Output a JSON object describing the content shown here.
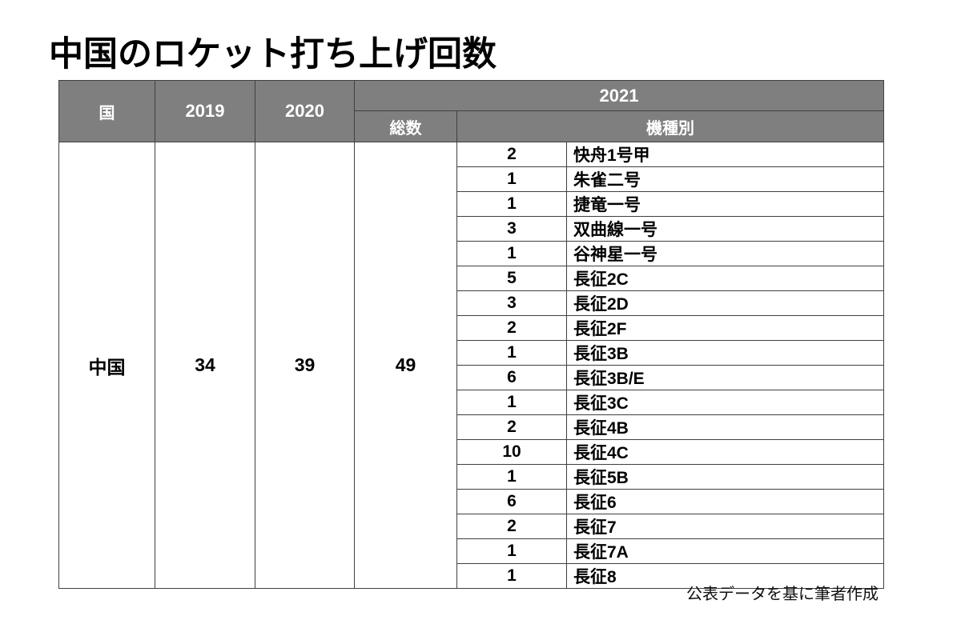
{
  "title": "中国のロケット打ち上げ回数",
  "footer_note": "公表データを基に筆者作成",
  "colors": {
    "header_bg": "#7f7f7f",
    "header_text": "#ffffff",
    "border": "#404040",
    "body_text": "#000000",
    "page_bg": "#ffffff"
  },
  "table_headers": {
    "country": "国",
    "y2019": "2019",
    "y2020": "2020",
    "y2021": "2021",
    "total": "総数",
    "by_model": "機種別"
  },
  "chart_data": {
    "type": "table",
    "title": "中国のロケット打ち上げ回数",
    "columns": [
      "国",
      "2019",
      "2020",
      "2021 総数",
      "2021 機種別"
    ],
    "country": "中国",
    "launches_2019": 34,
    "launches_2020": 39,
    "total_2021": 49,
    "models_2021": [
      {
        "count": 2,
        "name": "快舟1号甲"
      },
      {
        "count": 1,
        "name": "朱雀二号"
      },
      {
        "count": 1,
        "name": "捷竜一号"
      },
      {
        "count": 3,
        "name": "双曲線一号"
      },
      {
        "count": 1,
        "name": "谷神星一号"
      },
      {
        "count": 5,
        "name": "長征2C"
      },
      {
        "count": 3,
        "name": "長征2D"
      },
      {
        "count": 2,
        "name": "長征2F"
      },
      {
        "count": 1,
        "name": "長征3B"
      },
      {
        "count": 6,
        "name": "長征3B/E"
      },
      {
        "count": 1,
        "name": "長征3C"
      },
      {
        "count": 2,
        "name": "長征4B"
      },
      {
        "count": 10,
        "name": "長征4C"
      },
      {
        "count": 1,
        "name": "長征5B"
      },
      {
        "count": 6,
        "name": "長征6"
      },
      {
        "count": 2,
        "name": "長征7"
      },
      {
        "count": 1,
        "name": "長征7A"
      },
      {
        "count": 1,
        "name": "長征8"
      }
    ],
    "note": "公表データを基に筆者作成"
  }
}
